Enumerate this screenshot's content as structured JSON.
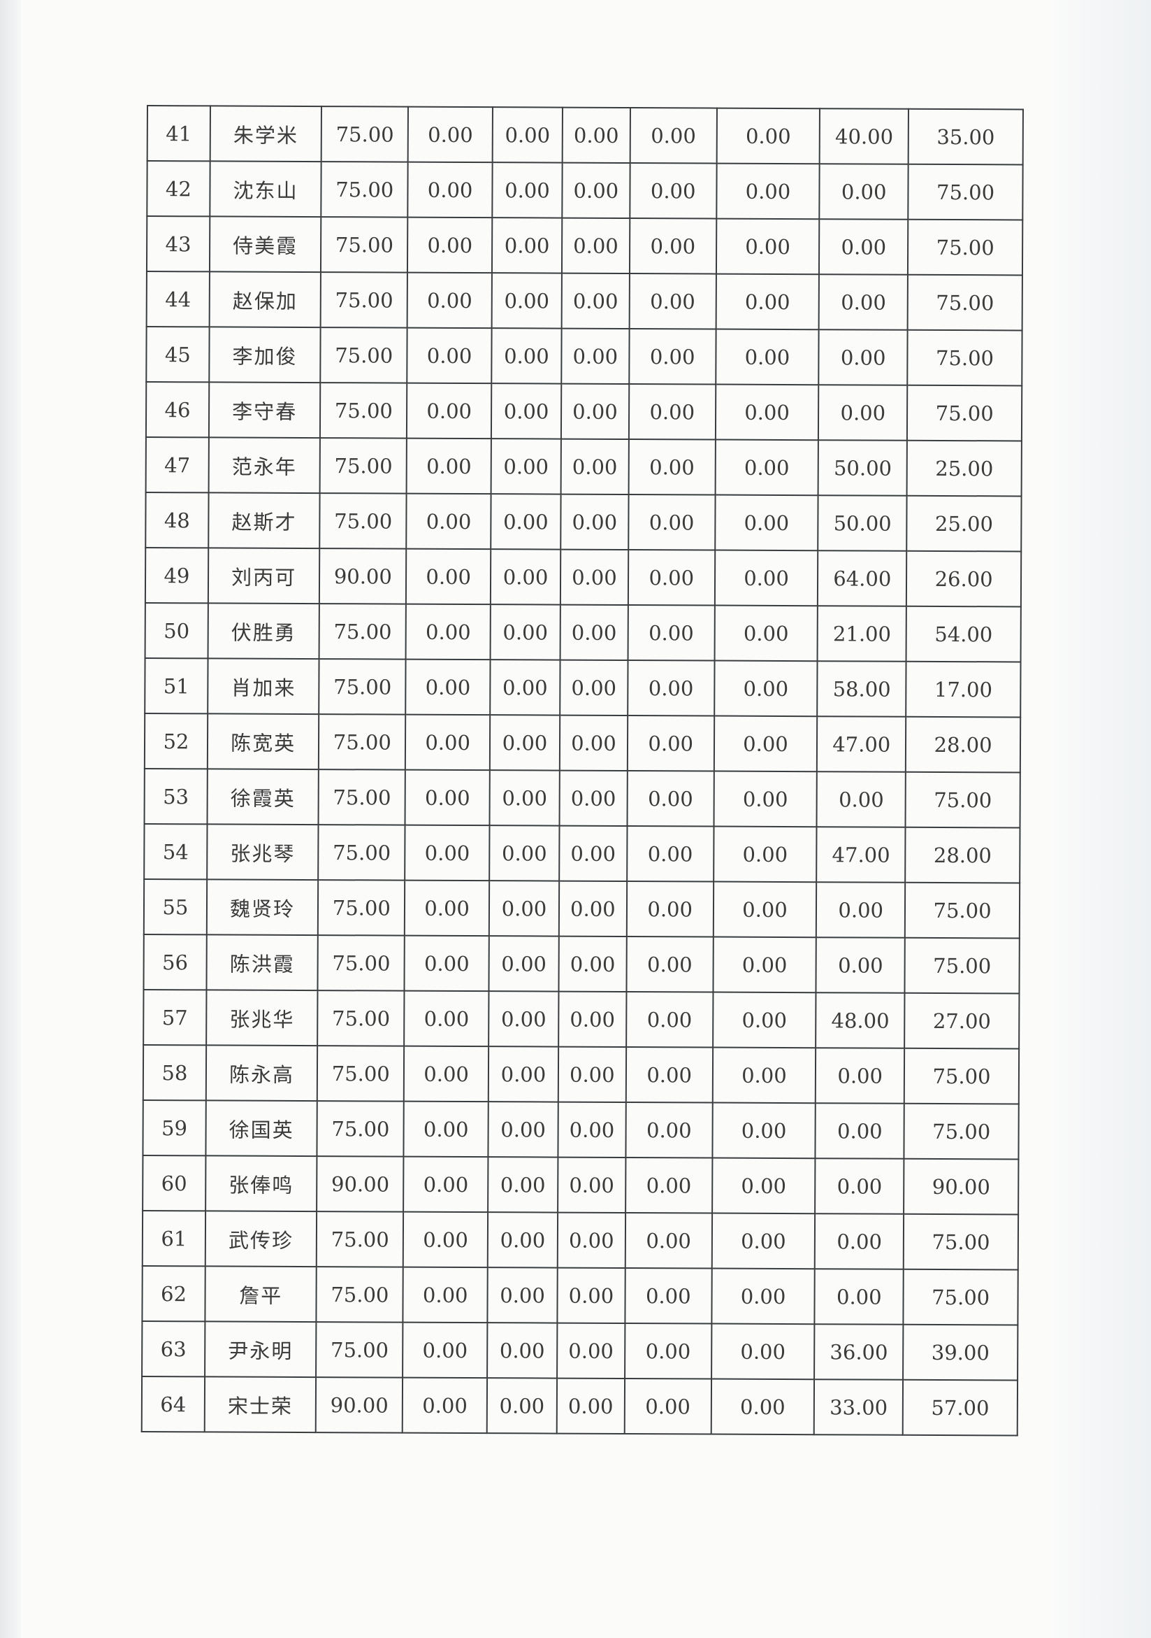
{
  "table": {
    "rows": [
      [
        "41",
        "朱学米",
        "75.00",
        "0.00",
        "0.00",
        "0.00",
        "0.00",
        "0.00",
        "40.00",
        "35.00"
      ],
      [
        "42",
        "沈东山",
        "75.00",
        "0.00",
        "0.00",
        "0.00",
        "0.00",
        "0.00",
        "0.00",
        "75.00"
      ],
      [
        "43",
        "侍美霞",
        "75.00",
        "0.00",
        "0.00",
        "0.00",
        "0.00",
        "0.00",
        "0.00",
        "75.00"
      ],
      [
        "44",
        "赵保加",
        "75.00",
        "0.00",
        "0.00",
        "0.00",
        "0.00",
        "0.00",
        "0.00",
        "75.00"
      ],
      [
        "45",
        "李加俊",
        "75.00",
        "0.00",
        "0.00",
        "0.00",
        "0.00",
        "0.00",
        "0.00",
        "75.00"
      ],
      [
        "46",
        "李守春",
        "75.00",
        "0.00",
        "0.00",
        "0.00",
        "0.00",
        "0.00",
        "0.00",
        "75.00"
      ],
      [
        "47",
        "范永年",
        "75.00",
        "0.00",
        "0.00",
        "0.00",
        "0.00",
        "0.00",
        "50.00",
        "25.00"
      ],
      [
        "48",
        "赵斯才",
        "75.00",
        "0.00",
        "0.00",
        "0.00",
        "0.00",
        "0.00",
        "50.00",
        "25.00"
      ],
      [
        "49",
        "刘丙可",
        "90.00",
        "0.00",
        "0.00",
        "0.00",
        "0.00",
        "0.00",
        "64.00",
        "26.00"
      ],
      [
        "50",
        "伏胜勇",
        "75.00",
        "0.00",
        "0.00",
        "0.00",
        "0.00",
        "0.00",
        "21.00",
        "54.00"
      ],
      [
        "51",
        "肖加来",
        "75.00",
        "0.00",
        "0.00",
        "0.00",
        "0.00",
        "0.00",
        "58.00",
        "17.00"
      ],
      [
        "52",
        "陈宽英",
        "75.00",
        "0.00",
        "0.00",
        "0.00",
        "0.00",
        "0.00",
        "47.00",
        "28.00"
      ],
      [
        "53",
        "徐霞英",
        "75.00",
        "0.00",
        "0.00",
        "0.00",
        "0.00",
        "0.00",
        "0.00",
        "75.00"
      ],
      [
        "54",
        "张兆琴",
        "75.00",
        "0.00",
        "0.00",
        "0.00",
        "0.00",
        "0.00",
        "47.00",
        "28.00"
      ],
      [
        "55",
        "魏贤玲",
        "75.00",
        "0.00",
        "0.00",
        "0.00",
        "0.00",
        "0.00",
        "0.00",
        "75.00"
      ],
      [
        "56",
        "陈洪霞",
        "75.00",
        "0.00",
        "0.00",
        "0.00",
        "0.00",
        "0.00",
        "0.00",
        "75.00"
      ],
      [
        "57",
        "张兆华",
        "75.00",
        "0.00",
        "0.00",
        "0.00",
        "0.00",
        "0.00",
        "48.00",
        "27.00"
      ],
      [
        "58",
        "陈永高",
        "75.00",
        "0.00",
        "0.00",
        "0.00",
        "0.00",
        "0.00",
        "0.00",
        "75.00"
      ],
      [
        "59",
        "徐国英",
        "75.00",
        "0.00",
        "0.00",
        "0.00",
        "0.00",
        "0.00",
        "0.00",
        "75.00"
      ],
      [
        "60",
        "张俸鸣",
        "90.00",
        "0.00",
        "0.00",
        "0.00",
        "0.00",
        "0.00",
        "0.00",
        "90.00"
      ],
      [
        "61",
        "武传珍",
        "75.00",
        "0.00",
        "0.00",
        "0.00",
        "0.00",
        "0.00",
        "0.00",
        "75.00"
      ],
      [
        "62",
        "詹平",
        "75.00",
        "0.00",
        "0.00",
        "0.00",
        "0.00",
        "0.00",
        "0.00",
        "75.00"
      ],
      [
        "63",
        "尹永明",
        "75.00",
        "0.00",
        "0.00",
        "0.00",
        "0.00",
        "0.00",
        "36.00",
        "39.00"
      ],
      [
        "64",
        "宋士荣",
        "90.00",
        "0.00",
        "0.00",
        "0.00",
        "0.00",
        "0.00",
        "33.00",
        "57.00"
      ]
    ]
  }
}
